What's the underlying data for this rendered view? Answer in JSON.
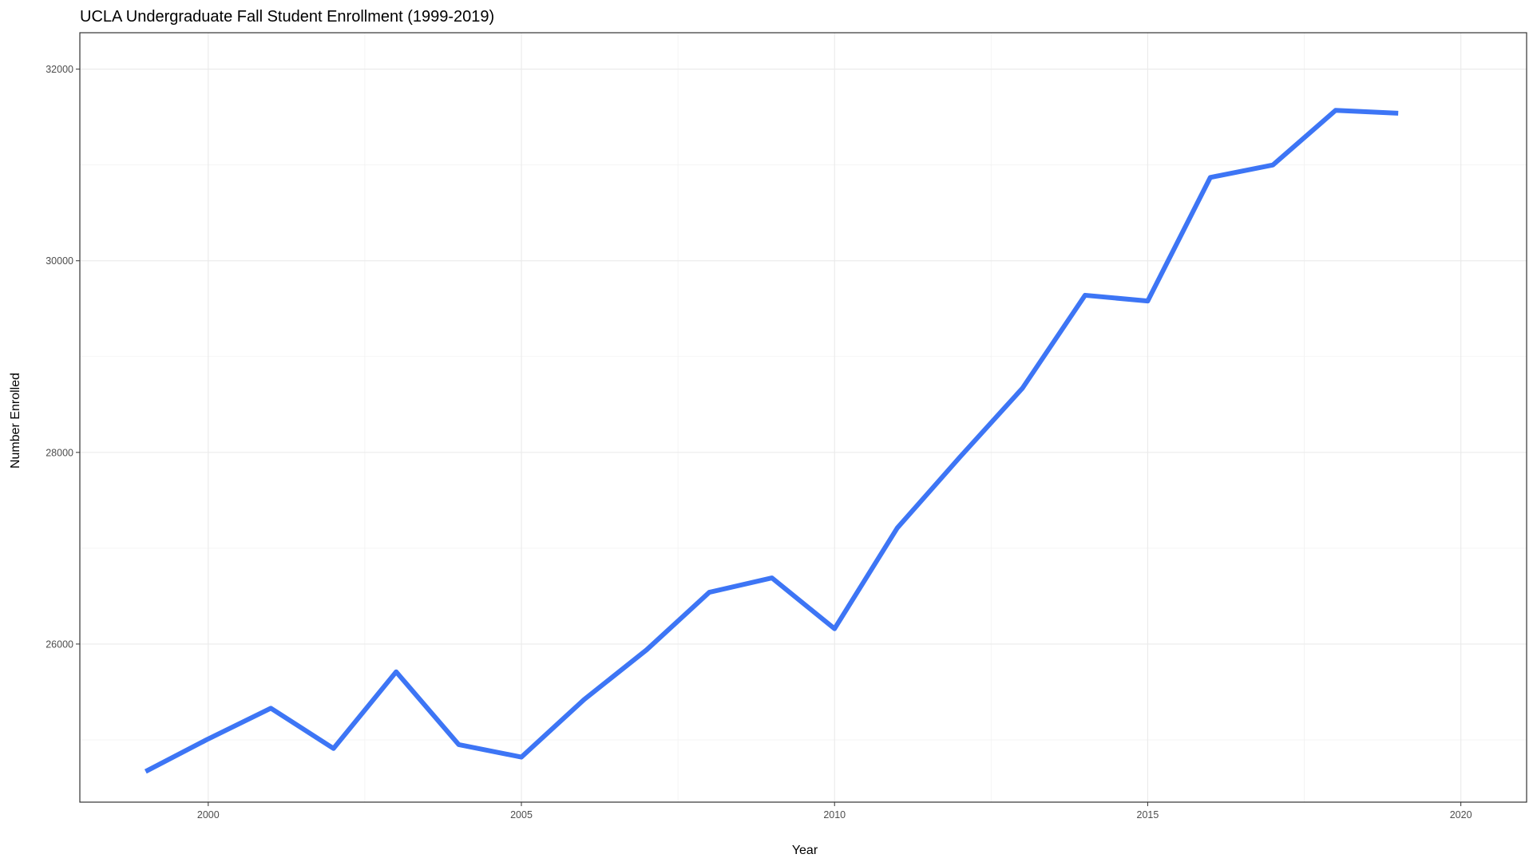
{
  "chart_data": {
    "type": "line",
    "title": "UCLA Undergraduate Fall Student Enrollment (1999-2019)",
    "xlabel": "Year",
    "ylabel": "Number Enrolled",
    "xlim": [
      1997.95,
      2021.05
    ],
    "ylim": [
      24350,
      32380
    ],
    "x_ticks": [
      2000,
      2005,
      2010,
      2015,
      2020
    ],
    "y_ticks": [
      26000,
      28000,
      30000,
      32000
    ],
    "x_tick_labels": [
      "2000",
      "2005",
      "2010",
      "2015",
      "2020"
    ],
    "y_tick_labels": [
      "26000",
      "28000",
      "30000",
      "32000"
    ],
    "grid": true,
    "series": [
      {
        "color": "#3d75f5",
        "x": [
          1999,
          2000,
          2001,
          2002,
          2003,
          2004,
          2005,
          2006,
          2007,
          2008,
          2009,
          2010,
          2011,
          2012,
          2013,
          2014,
          2015,
          2016,
          2017,
          2018,
          2019
        ],
        "values": [
          24670,
          25010,
          25330,
          24910,
          25710,
          24950,
          24820,
          25420,
          25940,
          26540,
          26690,
          26160,
          27210,
          27950,
          28670,
          29640,
          29580,
          30870,
          31000,
          31570,
          31540
        ]
      }
    ]
  }
}
